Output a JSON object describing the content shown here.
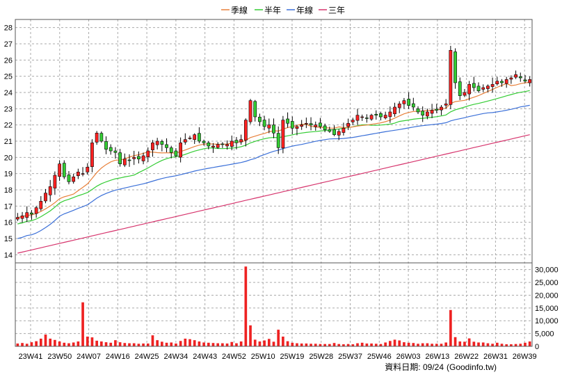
{
  "legend": [
    {
      "label": "季線",
      "color": "#e8803a"
    },
    {
      "label": "半年",
      "color": "#33cc33"
    },
    {
      "label": "年線",
      "color": "#3a6fd8"
    },
    {
      "label": "三年",
      "color": "#d6336c"
    }
  ],
  "footer": {
    "date_label": "資料日期: 09/24",
    "source": "(Goodinfo.tw)"
  },
  "chart_data": {
    "type": "candlestick",
    "x_ticks": [
      "23W41",
      "23W50",
      "24W07",
      "24W16",
      "24W25",
      "24W34",
      "24W43",
      "24W52",
      "25W10",
      "25W19",
      "25W28",
      "25W37",
      "25W46",
      "26W03",
      "26W13",
      "26W22",
      "26W31",
      "26W39"
    ],
    "price_axis": {
      "ylim": [
        13.5,
        28.5
      ],
      "ticks": [
        14,
        15,
        16,
        17,
        18,
        19,
        20,
        21,
        22,
        23,
        24,
        25,
        26,
        27,
        28
      ]
    },
    "volume_axis": {
      "ylim": [
        0,
        31000
      ],
      "ticks": [
        0,
        5000,
        10000,
        15000,
        20000,
        25000,
        30000
      ],
      "tick_labels": [
        "0",
        "5,000",
        "10,000",
        "15,000",
        "20,000",
        "25,000",
        "30,000"
      ]
    },
    "colors": {
      "up": "#ff2222",
      "down": "#33cc33",
      "volume": "#ee2222"
    },
    "series_names": [
      "季線",
      "半年",
      "年線",
      "三年"
    ],
    "closes": [
      16.3,
      16.4,
      16.6,
      16.5,
      16.9,
      17.3,
      17.8,
      18.2,
      18.9,
      19.6,
      18.8,
      18.5,
      18.8,
      19.1,
      19.0,
      19.4,
      20.9,
      21.5,
      21.0,
      20.5,
      20.4,
      20.3,
      19.6,
      19.9,
      19.8,
      20.0,
      19.9,
      20.1,
      20.4,
      20.9,
      21.0,
      20.8,
      20.6,
      20.3,
      20.1,
      20.9,
      21.1,
      21.2,
      21.4,
      21.0,
      20.9,
      20.7,
      20.7,
      20.8,
      20.8,
      20.8,
      21.0,
      20.9,
      21.1,
      22.3,
      23.5,
      22.5,
      22.2,
      21.9,
      22.0,
      21.5,
      20.6,
      22.3,
      22.1,
      21.8,
      21.9,
      22.0,
      22.1,
      22.0,
      22.0,
      21.9,
      21.7,
      21.6,
      21.4,
      21.6,
      21.8,
      22.1,
      22.3,
      22.6,
      22.5,
      22.4,
      22.6,
      22.6,
      22.5,
      22.6,
      22.8,
      23.1,
      23.3,
      23.5,
      23.2,
      23.1,
      22.8,
      22.6,
      22.8,
      22.9,
      22.9,
      23.1,
      23.3,
      26.6,
      24.6,
      23.8,
      24.0,
      24.5,
      24.3,
      24.1,
      24.3,
      24.4,
      24.5,
      24.7,
      24.6,
      24.8,
      24.9,
      25.1,
      24.9,
      24.7,
      24.8
    ],
    "volumes": [
      1100,
      1300,
      1000,
      1600,
      2000,
      3000,
      4600,
      3000,
      2500,
      1900,
      1400,
      1200,
      1500,
      1900,
      17200,
      3800,
      3500,
      2200,
      1900,
      1600,
      1400,
      2400,
      1600,
      1300,
      1200,
      1200,
      1000,
      1100,
      1100,
      4300,
      2400,
      1800,
      1400,
      1500,
      1100,
      2100,
      3000,
      2800,
      2400,
      1900,
      1500,
      1400,
      1300,
      1200,
      1200,
      1100,
      1700,
      1200,
      1900,
      31200,
      8200,
      2600,
      1900,
      2300,
      2900,
      1800,
      6500,
      3800,
      2000,
      1400,
      1200,
      1100,
      1100,
      1000,
      1000,
      900,
      900,
      900,
      1300,
      900,
      800,
      900,
      800,
      1200,
      1400,
      1100,
      1100,
      1000,
      900,
      1500,
      2100,
      2600,
      2300,
      1600,
      1400,
      1300,
      1000,
      1200,
      1200,
      1000,
      1000,
      1000,
      1500,
      14200,
      3600,
      1900,
      1800,
      3100,
      1800,
      1500,
      1500,
      1200,
      1000,
      1400,
      1000,
      800,
      800,
      900,
      1000,
      1400,
      1900
    ]
  }
}
